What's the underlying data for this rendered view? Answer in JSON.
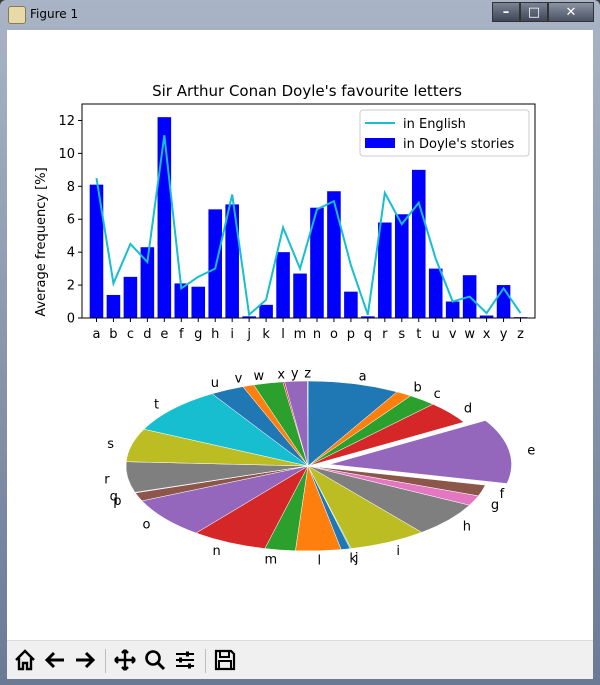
{
  "window": {
    "title": "Figure 1",
    "buttons": {
      "minimize": "–",
      "maximize": "□",
      "close": "✕"
    }
  },
  "toolbar": {
    "buttons": [
      "home-icon",
      "back-arrow-icon",
      "forward-arrow-icon",
      "pan-icon",
      "zoom-icon",
      "configure-subplots-icon",
      "save-icon"
    ]
  },
  "colors": {
    "bars": "#0000ff",
    "english_line": "#17becf"
  },
  "chart_data": [
    {
      "type": "bar",
      "title": "Sir Arthur Conan Doyle's favourite letters",
      "ylabel": "Average frequency [%]",
      "xlabel": "",
      "ylim": [
        0,
        13
      ],
      "yticks": [
        0,
        2,
        4,
        6,
        8,
        10,
        12
      ],
      "categories": [
        "a",
        "b",
        "c",
        "d",
        "e",
        "f",
        "g",
        "h",
        "i",
        "j",
        "k",
        "l",
        "m",
        "n",
        "o",
        "p",
        "q",
        "r",
        "s",
        "t",
        "u",
        "v",
        "w",
        "x",
        "y",
        "z"
      ],
      "series": [
        {
          "name": "in Doyle's stories",
          "kind": "bar",
          "color": "#0000ff",
          "values": [
            8.1,
            1.4,
            2.5,
            4.3,
            12.2,
            2.1,
            1.9,
            6.6,
            6.9,
            0.1,
            0.8,
            4.0,
            2.7,
            6.7,
            7.7,
            1.6,
            0.1,
            5.8,
            6.3,
            9.0,
            3.0,
            1.0,
            2.6,
            0.15,
            2.0,
            0.05
          ]
        },
        {
          "name": "in English",
          "kind": "line",
          "color": "#17becf",
          "values": [
            8.5,
            2.1,
            4.5,
            3.4,
            11.1,
            1.8,
            2.5,
            3.0,
            7.5,
            0.2,
            1.1,
            5.5,
            3.0,
            6.6,
            7.1,
            3.2,
            0.2,
            7.6,
            5.7,
            7.0,
            3.6,
            1.0,
            1.3,
            0.3,
            1.8,
            0.3
          ]
        }
      ],
      "legend": "top-right"
    },
    {
      "type": "pie",
      "labels": [
        "a",
        "b",
        "c",
        "d",
        "e",
        "f",
        "g",
        "h",
        "i",
        "j",
        "k",
        "l",
        "m",
        "n",
        "o",
        "p",
        "q",
        "r",
        "s",
        "t",
        "u",
        "v",
        "w",
        "x",
        "y",
        "z"
      ],
      "values": [
        8.1,
        1.4,
        2.5,
        4.3,
        12.2,
        2.1,
        1.9,
        6.6,
        6.9,
        0.1,
        0.8,
        4.0,
        2.7,
        6.7,
        7.7,
        1.6,
        0.1,
        5.8,
        6.3,
        9.0,
        3.0,
        1.0,
        2.6,
        0.15,
        2.0,
        0.05
      ],
      "explode": "e",
      "start": "top, counterclockwise from 'z' side: slices run clockwise from 'a'",
      "colors": [
        "#1f77b4",
        "#ff7f0e",
        "#2ca02c",
        "#d62728",
        "#9467bd",
        "#8c564b",
        "#e377c2",
        "#7f7f7f",
        "#bcbd22",
        "#17becf"
      ]
    }
  ]
}
